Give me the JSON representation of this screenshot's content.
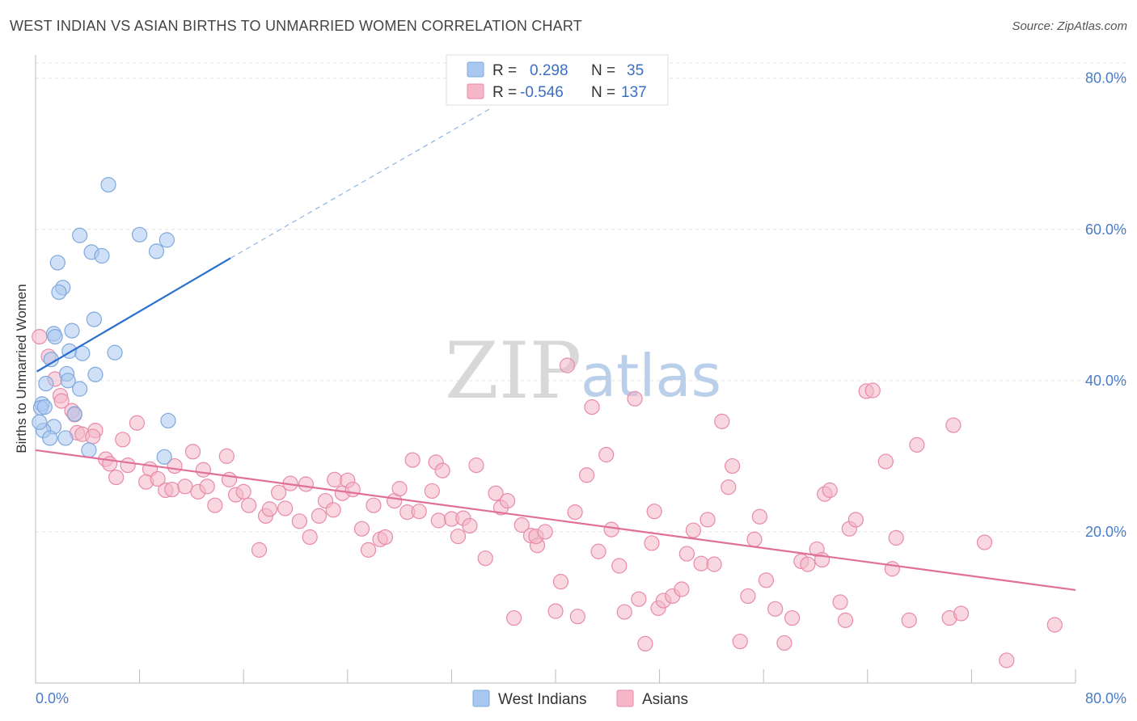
{
  "title": "WEST INDIAN VS ASIAN BIRTHS TO UNMARRIED WOMEN CORRELATION CHART",
  "source": "Source: ZipAtlas.com",
  "watermark": {
    "zip": "ZIP",
    "atlas": "atlas"
  },
  "legend": {
    "rows": [
      {
        "r_label": "R =",
        "r_value": "0.298",
        "n_label": "N =",
        "n_value": "35",
        "color": "#a9c8f0"
      },
      {
        "r_label": "R =",
        "r_value": "-0.546",
        "n_label": "N =",
        "n_value": "137",
        "color": "#f4b6c8"
      }
    ]
  },
  "bottom_legend": [
    {
      "label": "West Indians",
      "color": "#a9c8f0"
    },
    {
      "label": "Asians",
      "color": "#f4b6c8"
    }
  ],
  "chart_data": {
    "type": "scatter",
    "title": "WEST INDIAN VS ASIAN BIRTHS TO UNMARRIED WOMEN CORRELATION CHART",
    "xlabel": "",
    "ylabel": "Births to Unmarried Women",
    "xlim": [
      0,
      80
    ],
    "ylim": [
      0,
      82
    ],
    "x_tick_labels": [
      "0.0%",
      "80.0%"
    ],
    "y_ticks": [
      20,
      40,
      60,
      80
    ],
    "y_tick_labels": [
      "20.0%",
      "40.0%",
      "60.0%",
      "80.0%"
    ],
    "grid": true,
    "series": [
      {
        "name": "West Indians",
        "color": "#a9c8f0",
        "stroke": "#7fa8dd",
        "trend": {
          "x": [
            0.1,
            15.0
          ],
          "y": [
            41.2,
            56.2
          ],
          "color": "#2a6fcf",
          "dash_to": [
            35.0,
            76.0
          ]
        },
        "points": [
          [
            5.6,
            65.9
          ],
          [
            3.4,
            59.2
          ],
          [
            8.0,
            59.3
          ],
          [
            10.1,
            58.6
          ],
          [
            4.3,
            57.0
          ],
          [
            5.1,
            56.5
          ],
          [
            9.3,
            57.1
          ],
          [
            1.7,
            55.6
          ],
          [
            2.1,
            52.3
          ],
          [
            1.8,
            51.7
          ],
          [
            4.5,
            48.1
          ],
          [
            1.4,
            46.2
          ],
          [
            2.8,
            46.6
          ],
          [
            1.5,
            45.8
          ],
          [
            6.1,
            43.7
          ],
          [
            2.6,
            43.9
          ],
          [
            3.6,
            43.6
          ],
          [
            1.2,
            42.8
          ],
          [
            2.4,
            40.9
          ],
          [
            4.6,
            40.8
          ],
          [
            0.8,
            39.6
          ],
          [
            2.5,
            40.0
          ],
          [
            3.4,
            38.9
          ],
          [
            0.5,
            36.9
          ],
          [
            0.4,
            36.4
          ],
          [
            1.4,
            33.9
          ],
          [
            0.6,
            33.4
          ],
          [
            1.1,
            32.4
          ],
          [
            2.3,
            32.4
          ],
          [
            10.2,
            34.7
          ],
          [
            3.0,
            35.6
          ],
          [
            4.1,
            30.8
          ],
          [
            9.9,
            29.9
          ],
          [
            0.3,
            34.5
          ],
          [
            0.7,
            36.5
          ]
        ]
      },
      {
        "name": "Asians",
        "color": "#f4b6c8",
        "stroke": "#e88aa8",
        "trend": {
          "x": [
            0.0,
            80.0
          ],
          "y": [
            30.8,
            12.3
          ],
          "color": "#e0709a"
        },
        "points": [
          [
            0.3,
            45.8
          ],
          [
            1.0,
            43.2
          ],
          [
            1.5,
            40.2
          ],
          [
            1.9,
            38.0
          ],
          [
            2.0,
            37.3
          ],
          [
            2.8,
            36.0
          ],
          [
            3.0,
            35.5
          ],
          [
            3.2,
            33.1
          ],
          [
            3.6,
            32.9
          ],
          [
            4.6,
            33.4
          ],
          [
            4.4,
            32.6
          ],
          [
            6.7,
            32.2
          ],
          [
            7.8,
            34.4
          ],
          [
            12.1,
            30.6
          ],
          [
            14.7,
            30.0
          ],
          [
            5.4,
            29.6
          ],
          [
            5.7,
            29.0
          ],
          [
            7.1,
            28.8
          ],
          [
            8.8,
            28.3
          ],
          [
            10.7,
            28.7
          ],
          [
            12.9,
            28.2
          ],
          [
            6.2,
            27.2
          ],
          [
            8.5,
            26.6
          ],
          [
            9.4,
            27.0
          ],
          [
            10.0,
            25.5
          ],
          [
            10.5,
            25.6
          ],
          [
            11.5,
            26.0
          ],
          [
            12.5,
            25.3
          ],
          [
            13.2,
            26.0
          ],
          [
            14.9,
            26.9
          ],
          [
            15.4,
            24.9
          ],
          [
            16.0,
            25.3
          ],
          [
            16.4,
            23.5
          ],
          [
            13.8,
            23.5
          ],
          [
            17.2,
            17.6
          ],
          [
            17.7,
            22.1
          ],
          [
            18.0,
            23.0
          ],
          [
            18.7,
            25.2
          ],
          [
            19.2,
            23.1
          ],
          [
            19.6,
            26.4
          ],
          [
            20.3,
            21.4
          ],
          [
            20.8,
            26.3
          ],
          [
            21.1,
            19.3
          ],
          [
            21.8,
            22.1
          ],
          [
            22.3,
            24.1
          ],
          [
            22.9,
            22.9
          ],
          [
            23.0,
            26.9
          ],
          [
            23.6,
            25.1
          ],
          [
            24.0,
            26.8
          ],
          [
            24.4,
            25.6
          ],
          [
            25.1,
            20.4
          ],
          [
            25.6,
            17.6
          ],
          [
            26.0,
            23.5
          ],
          [
            26.5,
            19.0
          ],
          [
            26.9,
            19.3
          ],
          [
            27.6,
            24.1
          ],
          [
            28.0,
            25.7
          ],
          [
            28.6,
            22.6
          ],
          [
            29.0,
            29.5
          ],
          [
            29.5,
            22.7
          ],
          [
            30.5,
            25.4
          ],
          [
            30.8,
            29.2
          ],
          [
            31.3,
            28.1
          ],
          [
            31.0,
            21.5
          ],
          [
            32.0,
            21.7
          ],
          [
            32.5,
            19.4
          ],
          [
            32.9,
            21.8
          ],
          [
            33.4,
            20.8
          ],
          [
            33.9,
            28.8
          ],
          [
            34.6,
            16.5
          ],
          [
            35.4,
            25.1
          ],
          [
            35.8,
            23.2
          ],
          [
            36.3,
            24.1
          ],
          [
            36.8,
            8.6
          ],
          [
            37.4,
            20.9
          ],
          [
            38.1,
            19.5
          ],
          [
            38.6,
            18.2
          ],
          [
            38.5,
            19.4
          ],
          [
            39.2,
            20.0
          ],
          [
            40.0,
            9.5
          ],
          [
            40.4,
            13.4
          ],
          [
            40.9,
            42.0
          ],
          [
            41.5,
            22.6
          ],
          [
            41.7,
            8.8
          ],
          [
            42.4,
            27.5
          ],
          [
            42.8,
            36.5
          ],
          [
            43.3,
            17.4
          ],
          [
            43.9,
            30.2
          ],
          [
            44.3,
            20.3
          ],
          [
            44.9,
            15.5
          ],
          [
            45.3,
            9.4
          ],
          [
            46.1,
            37.6
          ],
          [
            46.4,
            11.1
          ],
          [
            46.9,
            5.2
          ],
          [
            47.4,
            18.5
          ],
          [
            47.6,
            22.7
          ],
          [
            47.9,
            9.9
          ],
          [
            48.3,
            10.9
          ],
          [
            49.0,
            11.5
          ],
          [
            49.7,
            12.4
          ],
          [
            50.1,
            17.1
          ],
          [
            50.6,
            20.2
          ],
          [
            51.2,
            15.8
          ],
          [
            51.7,
            21.6
          ],
          [
            52.2,
            15.7
          ],
          [
            52.8,
            34.6
          ],
          [
            53.3,
            25.9
          ],
          [
            53.6,
            28.7
          ],
          [
            54.2,
            5.5
          ],
          [
            54.8,
            11.5
          ],
          [
            55.3,
            19.0
          ],
          [
            55.7,
            22.0
          ],
          [
            56.2,
            13.6
          ],
          [
            56.9,
            9.8
          ],
          [
            57.6,
            5.3
          ],
          [
            58.2,
            8.6
          ],
          [
            58.9,
            16.1
          ],
          [
            59.4,
            15.7
          ],
          [
            60.1,
            17.7
          ],
          [
            60.5,
            16.3
          ],
          [
            60.7,
            25.0
          ],
          [
            61.1,
            25.5
          ],
          [
            61.9,
            10.7
          ],
          [
            62.3,
            8.3
          ],
          [
            62.6,
            20.4
          ],
          [
            63.1,
            21.6
          ],
          [
            63.9,
            38.6
          ],
          [
            64.4,
            38.7
          ],
          [
            65.4,
            29.3
          ],
          [
            65.9,
            15.1
          ],
          [
            66.2,
            19.2
          ],
          [
            67.2,
            8.3
          ],
          [
            67.8,
            31.5
          ],
          [
            70.3,
            8.6
          ],
          [
            70.6,
            34.1
          ],
          [
            71.2,
            9.2
          ],
          [
            73.0,
            18.6
          ],
          [
            74.7,
            3.0
          ],
          [
            78.4,
            7.7
          ]
        ]
      }
    ]
  }
}
